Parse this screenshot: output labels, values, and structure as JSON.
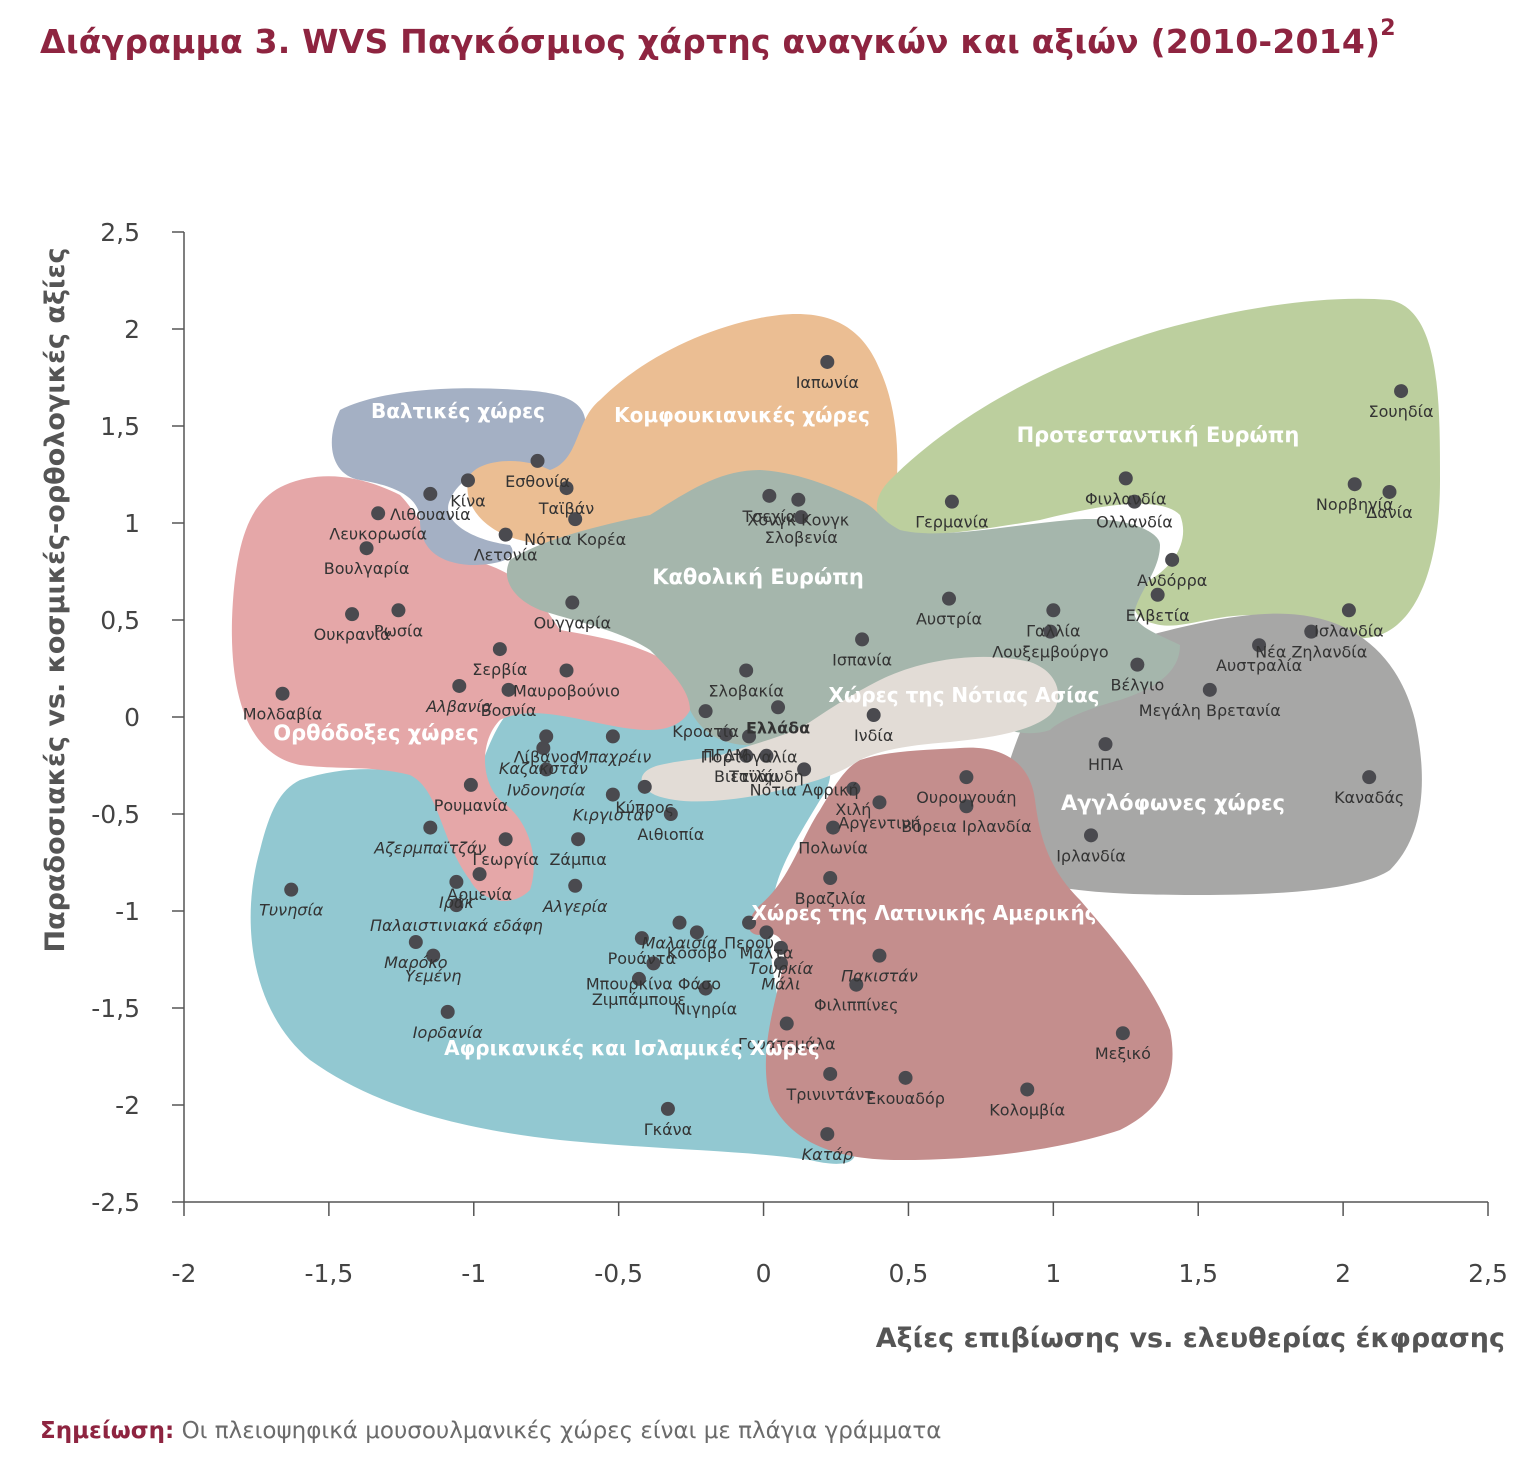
{
  "title": {
    "text": "Διάγραμμα 3. WVS Παγκόσμιος χάρτης αναγκών και αξιών (2010-2014)",
    "superscript": "2"
  },
  "note": {
    "label": "Σημείωση:",
    "text": "Οι πλειοψηφικά μουσουλμανικές χώρες είναι με πλάγια γράμματα"
  },
  "colors": {
    "title": "#8e2440",
    "point": "#4a4a4f",
    "axis": "#555555",
    "label": "#333333",
    "group_label": "#ffffff"
  },
  "groups": [
    {
      "key": "african_islamic",
      "name": "Αφρικανικές και Ισλαμικές Χώρες",
      "color": "#92c8d1"
    },
    {
      "key": "orthodox",
      "name": "Ορθόδοξες χώρες",
      "color": "#e5a7a8"
    },
    {
      "key": "baltic",
      "name": "Βαλτικές χώρες",
      "color": "#a4b0c4"
    },
    {
      "key": "confucian",
      "name": "Κομφουκιανικές χώρες",
      "color": "#ebbe93"
    },
    {
      "key": "protestant",
      "name": "Προτεσταντική Ευρώπη",
      "color": "#bccf9e"
    },
    {
      "key": "anglophone",
      "name": "Αγγλόφωνες χώρες",
      "color": "#a7a7a6"
    },
    {
      "key": "catholic",
      "name": "Καθολική Ευρώπη",
      "color": "#a5b6ac"
    },
    {
      "key": "latin_america",
      "name": "Χώρες της Λατινικής Αμερικής",
      "color": "#c48e8d"
    },
    {
      "key": "south_asia",
      "name": "Χώρες της Νότιας Ασίας",
      "color": "#e2dcd6"
    }
  ],
  "chart_data": {
    "type": "scatter",
    "title": "Διάγραμμα 3. WVS Παγκόσμιος χάρτης αναγκών και αξιών (2010-2014)",
    "xlabel": "Αξίες επιβίωσης vs. ελευθερίας έκφρασης",
    "ylabel": "Παραδοσιακές vs. κοσμικές-ορθολογικές αξίες",
    "xlim": [
      -2,
      2.5
    ],
    "ylim": [
      -2.5,
      2.5
    ],
    "x_ticks": [
      "-2",
      "-1,5",
      "-1",
      "-0,5",
      "0",
      "0,5",
      "1",
      "1,5",
      "2",
      "2,5"
    ],
    "y_ticks": [
      "2,5",
      "2",
      "1,5",
      "1",
      "0,5",
      "0",
      "-0,5",
      "-1",
      "-1,5",
      "-2",
      "-2,5"
    ],
    "grid": false,
    "points": [
      {
        "name": "Ιαπωνία",
        "x": 0.22,
        "y": 1.83,
        "italic": false,
        "bold": false
      },
      {
        "name": "Σουηδία",
        "x": 2.2,
        "y": 1.68,
        "italic": false,
        "bold": false
      },
      {
        "name": "Εσθονία",
        "x": -0.78,
        "y": 1.32,
        "italic": false,
        "bold": false
      },
      {
        "name": "Κίνα",
        "x": -1.02,
        "y": 1.22,
        "italic": false,
        "bold": false
      },
      {
        "name": "Ταϊβάν",
        "x": -0.68,
        "y": 1.18,
        "italic": false,
        "bold": false
      },
      {
        "name": "Λιθουανία",
        "x": -1.15,
        "y": 1.15,
        "italic": false,
        "bold": false
      },
      {
        "name": "Νότια Κορέα",
        "x": -0.65,
        "y": 1.02,
        "italic": false,
        "bold": false
      },
      {
        "name": "Τσεχία",
        "x": 0.02,
        "y": 1.14,
        "italic": false,
        "bold": false
      },
      {
        "name": "Χονγκ Κονγκ",
        "x": 0.12,
        "y": 1.12,
        "italic": false,
        "bold": false
      },
      {
        "name": "Σλοβενία",
        "x": 0.13,
        "y": 1.03,
        "italic": false,
        "bold": false
      },
      {
        "name": "Γερμανία",
        "x": 0.65,
        "y": 1.11,
        "italic": false,
        "bold": false
      },
      {
        "name": "Φινλανδία",
        "x": 1.25,
        "y": 1.23,
        "italic": false,
        "bold": false
      },
      {
        "name": "Ολλανδία",
        "x": 1.28,
        "y": 1.11,
        "italic": false,
        "bold": false
      },
      {
        "name": "Νορβηγία",
        "x": 2.04,
        "y": 1.2,
        "italic": false,
        "bold": false
      },
      {
        "name": "Δανία",
        "x": 2.16,
        "y": 1.16,
        "italic": false,
        "bold": false
      },
      {
        "name": "Λευκορωσία",
        "x": -1.33,
        "y": 1.05,
        "italic": false,
        "bold": false
      },
      {
        "name": "Λετονία",
        "x": -0.89,
        "y": 0.94,
        "italic": false,
        "bold": false
      },
      {
        "name": "Βουλγαρία",
        "x": -1.37,
        "y": 0.87,
        "italic": false,
        "bold": false
      },
      {
        "name": "Ανδόρρα",
        "x": 1.41,
        "y": 0.81,
        "italic": false,
        "bold": false
      },
      {
        "name": "Ελβετία",
        "x": 1.36,
        "y": 0.63,
        "italic": false,
        "bold": false
      },
      {
        "name": "Ισλανδία",
        "x": 2.02,
        "y": 0.55,
        "italic": false,
        "bold": false
      },
      {
        "name": "Ουγγαρία",
        "x": -0.66,
        "y": 0.59,
        "italic": false,
        "bold": false
      },
      {
        "name": "Αυστρία",
        "x": 0.64,
        "y": 0.61,
        "italic": false,
        "bold": false
      },
      {
        "name": "Γαλλία",
        "x": 1.0,
        "y": 0.55,
        "italic": false,
        "bold": false
      },
      {
        "name": "Ουκρανία",
        "x": -1.42,
        "y": 0.53,
        "italic": false,
        "bold": false
      },
      {
        "name": "Ρωσία",
        "x": -1.26,
        "y": 0.55,
        "italic": false,
        "bold": false
      },
      {
        "name": "Ισπανία",
        "x": 0.34,
        "y": 0.4,
        "italic": false,
        "bold": false
      },
      {
        "name": "Λουξεμβούργο",
        "x": 0.99,
        "y": 0.44,
        "italic": false,
        "bold": false
      },
      {
        "name": "Αυστραλία",
        "x": 1.71,
        "y": 0.37,
        "italic": false,
        "bold": false
      },
      {
        "name": "Νέα Ζηλανδία",
        "x": 1.89,
        "y": 0.44,
        "italic": false,
        "bold": false
      },
      {
        "name": "Σερβία",
        "x": -0.91,
        "y": 0.35,
        "italic": false,
        "bold": false
      },
      {
        "name": "Μαυροβούνιο",
        "x": -0.68,
        "y": 0.24,
        "italic": false,
        "bold": false
      },
      {
        "name": "Σλοβακία",
        "x": -0.06,
        "y": 0.24,
        "italic": false,
        "bold": false
      },
      {
        "name": "Βέλγιο",
        "x": 1.29,
        "y": 0.27,
        "italic": false,
        "bold": false
      },
      {
        "name": "Μολδαβία",
        "x": -1.66,
        "y": 0.12,
        "italic": false,
        "bold": false
      },
      {
        "name": "Αλβανία",
        "x": -1.05,
        "y": 0.16,
        "italic": true,
        "bold": false
      },
      {
        "name": "Βοσνία",
        "x": -0.88,
        "y": 0.14,
        "italic": false,
        "bold": false
      },
      {
        "name": "Μεγάλη Βρετανία",
        "x": 1.54,
        "y": 0.14,
        "italic": false,
        "bold": false
      },
      {
        "name": "Ελλάδα",
        "x": 0.05,
        "y": 0.05,
        "italic": false,
        "bold": true
      },
      {
        "name": "Ινδία",
        "x": 0.38,
        "y": 0.01,
        "italic": false,
        "bold": false
      },
      {
        "name": "Κροατία",
        "x": -0.2,
        "y": 0.03,
        "italic": false,
        "bold": false
      },
      {
        "name": "Λίβανος",
        "x": -0.75,
        "y": -0.1,
        "italic": false,
        "bold": false
      },
      {
        "name": "Μπαχρέιν",
        "x": -0.52,
        "y": -0.1,
        "italic": true,
        "bold": false
      },
      {
        "name": "ΠΓΔΜ",
        "x": -0.13,
        "y": -0.09,
        "italic": false,
        "bold": false
      },
      {
        "name": "Πορτογαλία",
        "x": -0.05,
        "y": -0.1,
        "italic": false,
        "bold": false
      },
      {
        "name": "Καζακστάν",
        "x": -0.76,
        "y": -0.16,
        "italic": true,
        "bold": false
      },
      {
        "name": "Βιετνάμ",
        "x": -0.06,
        "y": -0.2,
        "italic": false,
        "bold": false
      },
      {
        "name": "Ταϊλάνδη",
        "x": 0.01,
        "y": -0.2,
        "italic": false,
        "bold": false
      },
      {
        "name": "ΗΠΑ",
        "x": 1.18,
        "y": -0.14,
        "italic": false,
        "bold": false
      },
      {
        "name": "Ρουμανία",
        "x": -1.01,
        "y": -0.35,
        "italic": false,
        "bold": false
      },
      {
        "name": "Ινδονησία",
        "x": -0.75,
        "y": -0.27,
        "italic": true,
        "bold": false
      },
      {
        "name": "Νότια Αφρική",
        "x": 0.14,
        "y": -0.27,
        "italic": false,
        "bold": false
      },
      {
        "name": "Ουρουγουάη",
        "x": 0.7,
        "y": -0.31,
        "italic": false,
        "bold": false
      },
      {
        "name": "Καναδάς",
        "x": 2.09,
        "y": -0.31,
        "italic": false,
        "bold": false
      },
      {
        "name": "Κύπρος",
        "x": -0.41,
        "y": -0.36,
        "italic": false,
        "bold": false
      },
      {
        "name": "Χιλή",
        "x": 0.31,
        "y": -0.37,
        "italic": false,
        "bold": false
      },
      {
        "name": "Κιργιστάν",
        "x": -0.52,
        "y": -0.4,
        "italic": true,
        "bold": false
      },
      {
        "name": "Αιθιοπία",
        "x": -0.32,
        "y": -0.5,
        "italic": false,
        "bold": false
      },
      {
        "name": "Αργεντινή",
        "x": 0.4,
        "y": -0.44,
        "italic": false,
        "bold": false
      },
      {
        "name": "Βόρεια Ιρλανδία",
        "x": 0.7,
        "y": -0.46,
        "italic": false,
        "bold": false
      },
      {
        "name": "Γεωργία",
        "x": -0.89,
        "y": -0.63,
        "italic": false,
        "bold": false
      },
      {
        "name": "Αζερμπαϊτζάν",
        "x": -1.15,
        "y": -0.57,
        "italic": true,
        "bold": false
      },
      {
        "name": "Ζάμπια",
        "x": -0.64,
        "y": -0.63,
        "italic": false,
        "bold": false
      },
      {
        "name": "Πολωνία",
        "x": 0.24,
        "y": -0.57,
        "italic": false,
        "bold": false
      },
      {
        "name": "Ιρλανδία",
        "x": 1.13,
        "y": -0.61,
        "italic": false,
        "bold": false
      },
      {
        "name": "Αρμενία",
        "x": -0.98,
        "y": -0.81,
        "italic": false,
        "bold": false
      },
      {
        "name": "Τυνησία",
        "x": -1.63,
        "y": -0.89,
        "italic": true,
        "bold": false
      },
      {
        "name": "Ιράκ",
        "x": -1.06,
        "y": -0.85,
        "italic": true,
        "bold": false
      },
      {
        "name": "Αλγερία",
        "x": -0.65,
        "y": -0.87,
        "italic": true,
        "bold": false
      },
      {
        "name": "Βραζιλία",
        "x": 0.23,
        "y": -0.83,
        "italic": false,
        "bold": false
      },
      {
        "name": "Παλαιστινιακά εδάφη",
        "x": -1.06,
        "y": -0.97,
        "italic": true,
        "bold": false
      },
      {
        "name": "Μαλαισία",
        "x": -0.29,
        "y": -1.06,
        "italic": true,
        "bold": false
      },
      {
        "name": "Κόσοβο",
        "x": -0.23,
        "y": -1.11,
        "italic": false,
        "bold": false
      },
      {
        "name": "Περού",
        "x": -0.05,
        "y": -1.06,
        "italic": false,
        "bold": false
      },
      {
        "name": "Μάλτα",
        "x": 0.01,
        "y": -1.11,
        "italic": false,
        "bold": false
      },
      {
        "name": "Μαρόκο",
        "x": -1.2,
        "y": -1.16,
        "italic": true,
        "bold": false
      },
      {
        "name": "Ρουάντα",
        "x": -0.42,
        "y": -1.14,
        "italic": false,
        "bold": false
      },
      {
        "name": "Τουρκία",
        "x": 0.06,
        "y": -1.19,
        "italic": true,
        "bold": false
      },
      {
        "name": "Υεμένη",
        "x": -1.14,
        "y": -1.23,
        "italic": true,
        "bold": false
      },
      {
        "name": "Πακιστάν",
        "x": 0.4,
        "y": -1.23,
        "italic": true,
        "bold": false
      },
      {
        "name": "Μπουρκίνα Φάσο",
        "x": -0.38,
        "y": -1.27,
        "italic": false,
        "bold": false
      },
      {
        "name": "Μάλι",
        "x": 0.06,
        "y": -1.27,
        "italic": true,
        "bold": false
      },
      {
        "name": "Ζιμπάμπουε",
        "x": -0.43,
        "y": -1.35,
        "italic": false,
        "bold": false
      },
      {
        "name": "Φιλιππίνες",
        "x": 0.32,
        "y": -1.38,
        "italic": false,
        "bold": false
      },
      {
        "name": "Νιγηρία",
        "x": -0.2,
        "y": -1.4,
        "italic": false,
        "bold": false
      },
      {
        "name": "Ιορδανία",
        "x": -1.09,
        "y": -1.52,
        "italic": true,
        "bold": false
      },
      {
        "name": "Γουατεμάλα",
        "x": 0.08,
        "y": -1.58,
        "italic": false,
        "bold": false
      },
      {
        "name": "Μεξικό",
        "x": 1.24,
        "y": -1.63,
        "italic": false,
        "bold": false
      },
      {
        "name": "Εκουαδόρ",
        "x": 0.49,
        "y": -1.86,
        "italic": false,
        "bold": false
      },
      {
        "name": "Τρινιντάντ",
        "x": 0.23,
        "y": -1.84,
        "italic": false,
        "bold": false
      },
      {
        "name": "Κολομβία",
        "x": 0.91,
        "y": -1.92,
        "italic": false,
        "bold": false
      },
      {
        "name": "Γκάνα",
        "x": -0.33,
        "y": -2.02,
        "italic": false,
        "bold": false
      },
      {
        "name": "Κατάρ",
        "x": 0.22,
        "y": -2.15,
        "italic": true,
        "bold": false
      }
    ]
  }
}
